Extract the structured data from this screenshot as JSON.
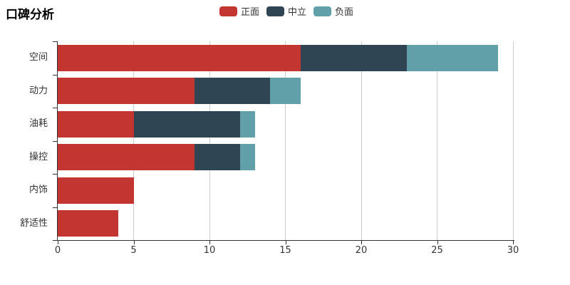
{
  "title": "口碑分析",
  "colors": {
    "positive": "#c23531",
    "neutral": "#2f4554",
    "negative": "#61a0a8",
    "text": "#333333",
    "grid": "#cccccc",
    "axis": "#333333",
    "background": "#ffffff"
  },
  "chart_data": {
    "type": "bar",
    "orientation": "horizontal",
    "stacked": true,
    "title": "口碑分析",
    "categories": [
      "空间",
      "动力",
      "油耗",
      "操控",
      "内饰",
      "舒适性"
    ],
    "series": [
      {
        "name": "正面",
        "color": "#c23531",
        "values": [
          16,
          9,
          5,
          9,
          5,
          4
        ]
      },
      {
        "name": "中立",
        "color": "#2f4554",
        "values": [
          7,
          5,
          7,
          3,
          0,
          0
        ]
      },
      {
        "name": "负面",
        "color": "#61a0a8",
        "values": [
          6,
          2,
          1,
          1,
          0,
          0
        ]
      }
    ],
    "totals": [
      29,
      16,
      13,
      13,
      5,
      4
    ],
    "xlim": [
      0,
      30
    ],
    "xticks": [
      0,
      5,
      10,
      15,
      20,
      25,
      30
    ],
    "grid": true,
    "legend_position": "top"
  }
}
